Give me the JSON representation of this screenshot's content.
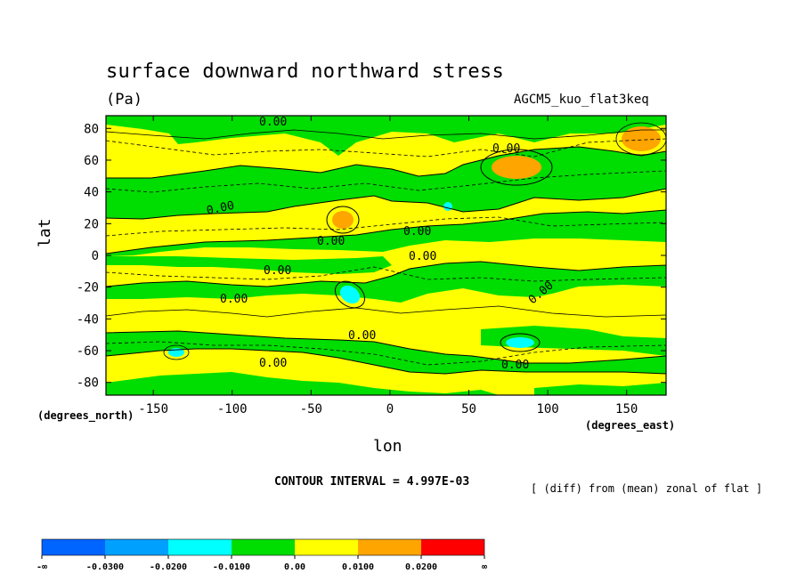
{
  "chart_data": {
    "type": "contour",
    "title": "surface downward northward stress",
    "units": "(Pa)",
    "model_label": "AGCM5_kuo_flat3keq",
    "xlabel": "lon",
    "ylabel": "lat",
    "x_units_label": "(degrees_east)",
    "y_units_label": "(degrees_north)",
    "x_ticks": [
      -150,
      -100,
      -50,
      0,
      50,
      100,
      150
    ],
    "y_ticks": [
      80,
      60,
      40,
      20,
      0,
      -20,
      -40,
      -60,
      -80
    ],
    "xlim": [
      -180,
      175
    ],
    "ylim": [
      -88,
      88
    ],
    "contour_interval_text": "CONTOUR INTERVAL = 4.997E-03",
    "note": "[ (diff) from (mean) zonal of flat ]",
    "contour_labels": [
      "0.00",
      "0.00",
      "0.00",
      "0.00",
      "0.00",
      "0.00",
      "0.00",
      "0.00",
      "0.00",
      "0.00",
      "0.00",
      "0.00"
    ],
    "colorbar": {
      "labels": [
        "-∞",
        "-0.0300",
        "-0.0200",
        "-0.0100",
        "0.00",
        "0.0100",
        "0.0200",
        "∞"
      ],
      "colors": [
        "#0064ff",
        "#00a0ff",
        "#00ffff",
        "#00dd00",
        "#ffff00",
        "#ffa500",
        "#ff0000"
      ]
    },
    "grid": false
  }
}
